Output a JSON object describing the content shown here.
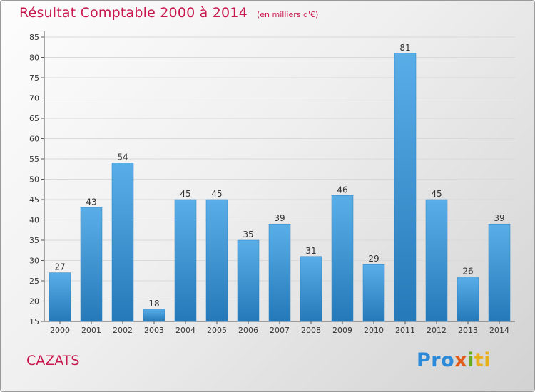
{
  "chart_data": {
    "type": "bar",
    "title": "Résultat Comptable 2000 à 2014",
    "subtitle": "(en milliers d'€)",
    "categories": [
      "2000",
      "2001",
      "2002",
      "2003",
      "2004",
      "2005",
      "2006",
      "2007",
      "2008",
      "2009",
      "2010",
      "2011",
      "2012",
      "2013",
      "2014"
    ],
    "values": [
      27,
      43,
      54,
      18,
      45,
      45,
      35,
      39,
      31,
      46,
      29,
      81,
      45,
      26,
      39
    ],
    "ylim": [
      15,
      85
    ],
    "yticks": [
      15,
      20,
      25,
      30,
      35,
      40,
      45,
      50,
      55,
      60,
      65,
      70,
      75,
      80,
      85
    ],
    "grid": true,
    "bar_color": "#3d95d6",
    "title_color": "#c8184f"
  },
  "footer": {
    "commune": "CAZATS",
    "logo": [
      "Pro",
      "x",
      "i",
      "ti"
    ]
  }
}
